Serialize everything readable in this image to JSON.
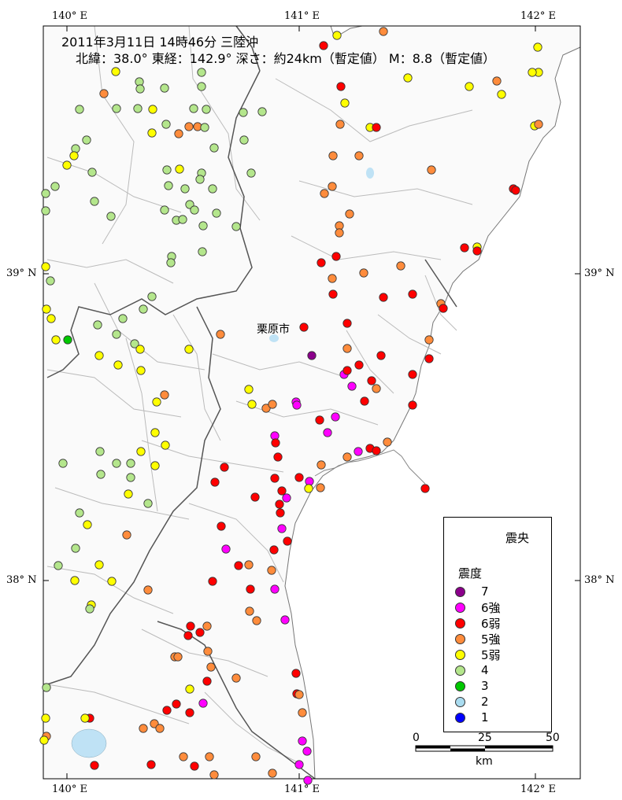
{
  "header": {
    "line1": "2011年3月11日 14時46分 三陸沖",
    "line2": "北緯：38.0° 東経：142.9° 深さ：約24km（暫定値） M：8.8（暫定値）"
  },
  "ticks": {
    "top": [
      "140° E",
      "141° E",
      "142° E"
    ],
    "bottom": [
      "140° E",
      "141° E",
      "142° E"
    ],
    "left": [
      "39° N",
      "38° N"
    ],
    "right": [
      "39° N",
      "38° N"
    ]
  },
  "place_label": "栗原市",
  "legend": {
    "epicenter_label": "震央",
    "title": "震度",
    "items": [
      {
        "label": "7",
        "color": "#8b008b"
      },
      {
        "label": "6強",
        "color": "#ff00ff"
      },
      {
        "label": "6弱",
        "color": "#ff0000"
      },
      {
        "label": "5強",
        "color": "#ff8c3c"
      },
      {
        "label": "5弱",
        "color": "#ffff00"
      },
      {
        "label": "4",
        "color": "#b4e68c"
      },
      {
        "label": "3",
        "color": "#00c800"
      },
      {
        "label": "2",
        "color": "#aadcf0"
      },
      {
        "label": "1",
        "color": "#0000ff"
      }
    ]
  },
  "scale": {
    "labels": [
      "0",
      "25",
      "50"
    ],
    "unit": "km"
  },
  "colors": {
    "7": "#8b008b",
    "6+": "#ff00ff",
    "6-": "#ff0000",
    "5+": "#ff8c3c",
    "5-": "#ffff00",
    "4": "#b4e68c",
    "3": "#00c800",
    "lake": "#bfe2f5"
  }
}
